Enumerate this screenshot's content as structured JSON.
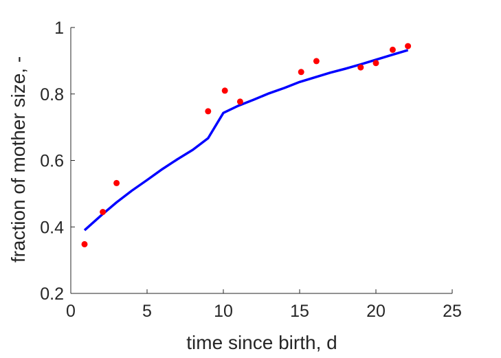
{
  "chart_data": {
    "type": "scatter",
    "title": "",
    "xlabel": "time since birth, d",
    "ylabel": "fraction of mother size, -",
    "xlim": [
      0,
      25
    ],
    "ylim": [
      0.2,
      1
    ],
    "xticks": [
      0,
      5,
      10,
      15,
      20,
      25
    ],
    "yticks": [
      0.2,
      0.4,
      0.6,
      0.8,
      1
    ],
    "xtick_labels": [
      "0",
      "5",
      "10",
      "15",
      "20",
      "25"
    ],
    "ytick_labels": [
      "0.2",
      "0.4",
      "0.6",
      "0.8",
      "1"
    ],
    "grid": false,
    "legend": "none",
    "series": [
      {
        "kind": "scatter",
        "color": "#ff0000",
        "x": [
          0.9,
          2.1,
          3.0,
          9.0,
          10.1,
          11.1,
          15.1,
          16.1,
          19.0,
          20.0,
          21.1,
          22.1
        ],
        "y": [
          0.348,
          0.445,
          0.532,
          0.748,
          0.81,
          0.777,
          0.866,
          0.899,
          0.88,
          0.893,
          0.933,
          0.944
        ]
      },
      {
        "kind": "line",
        "color": "#0000ff",
        "x": [
          0.9,
          2.0,
          3.0,
          4.0,
          5.0,
          6.0,
          7.0,
          8.0,
          9.0,
          10.0,
          11.0,
          12.0,
          13.0,
          14.0,
          15.0,
          16.0,
          17.0,
          18.0,
          19.0,
          20.0,
          21.0,
          22.1
        ],
        "y": [
          0.39,
          0.435,
          0.474,
          0.509,
          0.541,
          0.574,
          0.604,
          0.632,
          0.667,
          0.743,
          0.765,
          0.783,
          0.802,
          0.818,
          0.836,
          0.85,
          0.864,
          0.876,
          0.889,
          0.903,
          0.917,
          0.932
        ]
      }
    ]
  }
}
